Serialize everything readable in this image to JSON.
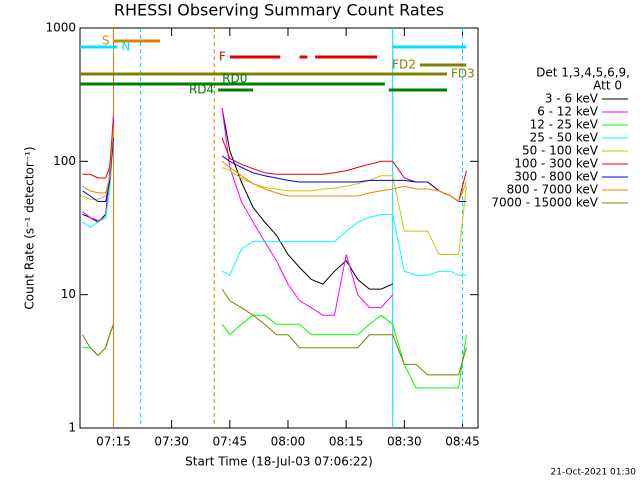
{
  "chart_data": {
    "type": "line",
    "title": "RHESSI Observing Summary Count Rates",
    "x_label": "Start Time (18-Jul-03 07:06:22)",
    "y_label": "Count Rate (s⁻¹ detector⁻¹)",
    "footer": "21-Oct-2021 01:30",
    "log_y": true,
    "xlim": [
      "07:06:22",
      "08:49"
    ],
    "xticks": [
      "07:15",
      "07:30",
      "07:45",
      "08:00",
      "08:15",
      "08:30",
      "08:45"
    ],
    "ylim": [
      1,
      1000
    ],
    "yticks": [
      1,
      10,
      100,
      1000
    ],
    "legend_title": [
      "Det 1,3,4,5,6,9,",
      "Att 0"
    ],
    "x": [
      "07:07",
      "07:09",
      "07:11",
      "07:13",
      "07:14",
      "07:15",
      "07:30",
      "07:43",
      "07:45",
      "07:48",
      "07:51",
      "07:54",
      "07:57",
      "08:00",
      "08:03",
      "08:06",
      "08:09",
      "08:12",
      "08:15",
      "08:18",
      "08:21",
      "08:24",
      "08:27",
      "08:30",
      "08:33",
      "08:36",
      "08:39",
      "08:42",
      "08:44",
      "08:46"
    ],
    "series": [
      {
        "name": "3 - 6 keV",
        "color": "#000000",
        "values": [
          40,
          38,
          35,
          40,
          80,
          220,
          null,
          250,
          120,
          70,
          45,
          35,
          28,
          20,
          16,
          13,
          12,
          15,
          18,
          13,
          11,
          11,
          12,
          null,
          null,
          null,
          null,
          null,
          null,
          null
        ]
      },
      {
        "name": "6 - 12 keV",
        "color": "#ff00ff",
        "values": [
          42,
          38,
          36,
          38,
          80,
          220,
          null,
          250,
          90,
          50,
          35,
          25,
          18,
          12,
          9,
          8,
          7,
          7,
          20,
          10,
          8,
          8,
          10,
          null,
          null,
          null,
          null,
          null,
          null,
          null
        ]
      },
      {
        "name": "12 - 25 keV",
        "color": "#00ff00",
        "values": [
          4,
          4,
          3.5,
          4,
          5,
          6,
          null,
          6,
          5,
          6,
          7,
          7,
          6,
          6,
          6,
          5,
          5,
          5,
          5,
          5,
          6,
          7,
          6,
          3,
          2,
          2,
          2,
          2,
          2,
          5
        ]
      },
      {
        "name": "25 - 50 keV",
        "color": "#00ffff",
        "values": [
          35,
          32,
          35,
          38,
          60,
          150,
          null,
          15,
          14,
          22,
          25,
          25,
          25,
          25,
          25,
          25,
          25,
          25,
          30,
          35,
          38,
          40,
          40,
          15,
          14,
          14,
          15,
          15,
          14,
          14
        ]
      },
      {
        "name": "50 - 100 keV",
        "color": "#c8c800",
        "values": [
          55,
          52,
          52,
          55,
          70,
          170,
          null,
          90,
          85,
          75,
          68,
          64,
          62,
          60,
          60,
          60,
          62,
          63,
          65,
          68,
          72,
          78,
          78,
          30,
          30,
          30,
          20,
          20,
          20,
          65
        ]
      },
      {
        "name": "100 - 300 keV",
        "color": "#e00000",
        "values": [
          80,
          80,
          75,
          75,
          90,
          200,
          null,
          150,
          105,
          95,
          88,
          82,
          80,
          80,
          80,
          80,
          80,
          82,
          85,
          90,
          95,
          100,
          100,
          75,
          70,
          70,
          60,
          55,
          50,
          85
        ]
      },
      {
        "name": "300 - 800 keV",
        "color": "#0000e0",
        "values": [
          60,
          55,
          50,
          50,
          70,
          150,
          null,
          110,
          100,
          90,
          82,
          78,
          75,
          72,
          70,
          70,
          70,
          70,
          70,
          70,
          72,
          72,
          72,
          72,
          70,
          70,
          60,
          55,
          50,
          50
        ]
      },
      {
        "name": "800 - 7000 keV",
        "color": "#ff8000",
        "values": [
          65,
          60,
          58,
          58,
          75,
          180,
          null,
          100,
          90,
          78,
          68,
          62,
          58,
          55,
          55,
          55,
          55,
          55,
          55,
          55,
          58,
          60,
          62,
          65,
          62,
          62,
          60,
          55,
          50,
          70
        ]
      },
      {
        "name": "7000 - 15000 keV",
        "color": "#808000",
        "values": [
          5,
          4,
          3.5,
          4,
          5,
          6,
          null,
          11,
          9,
          8,
          7,
          6,
          5,
          5,
          4,
          4,
          4,
          4,
          4,
          4,
          5,
          5,
          5,
          3,
          3,
          2.5,
          2.5,
          2.5,
          2.5,
          4
        ]
      }
    ],
    "flags": [
      {
        "label": "S",
        "color": "#e08000",
        "segments": [
          [
            "07:15",
            "07:27"
          ]
        ]
      },
      {
        "label": "N",
        "color": "#00e0ff",
        "segments": [
          [
            "07:06:22",
            "07:16"
          ],
          [
            "08:27",
            "08:46"
          ]
        ]
      },
      {
        "label": "F",
        "color": "#e00000",
        "segments": [
          [
            "07:45",
            "07:58"
          ],
          [
            "08:03",
            "08:05"
          ],
          [
            "08:07",
            "08:23"
          ]
        ]
      },
      {
        "label": "FD2",
        "color": "#808000",
        "segments": [
          [
            "08:34",
            "08:46"
          ]
        ]
      },
      {
        "label": "FD3",
        "color": "#808000",
        "segments": [
          [
            "07:06:22",
            "08:41"
          ]
        ]
      },
      {
        "label": "RD0",
        "color": "#008000",
        "segments": [
          [
            "07:06:22",
            "08:25"
          ]
        ]
      },
      {
        "label": "RD4",
        "color": "#008000",
        "segments": [
          [
            "07:42",
            "07:51"
          ],
          [
            "08:26",
            "08:41"
          ]
        ]
      }
    ],
    "markers": [
      {
        "time": "07:15",
        "color": "#e08000",
        "style": "solid"
      },
      {
        "time": "07:22",
        "color": "#00e0ff",
        "style": "dashed"
      },
      {
        "time": "07:41",
        "color": "#e08000",
        "style": "dashed"
      },
      {
        "time": "08:27",
        "color": "#00e0ff",
        "style": "solid"
      },
      {
        "time": "08:45",
        "color": "#00e0ff",
        "style": "dashed"
      }
    ]
  }
}
